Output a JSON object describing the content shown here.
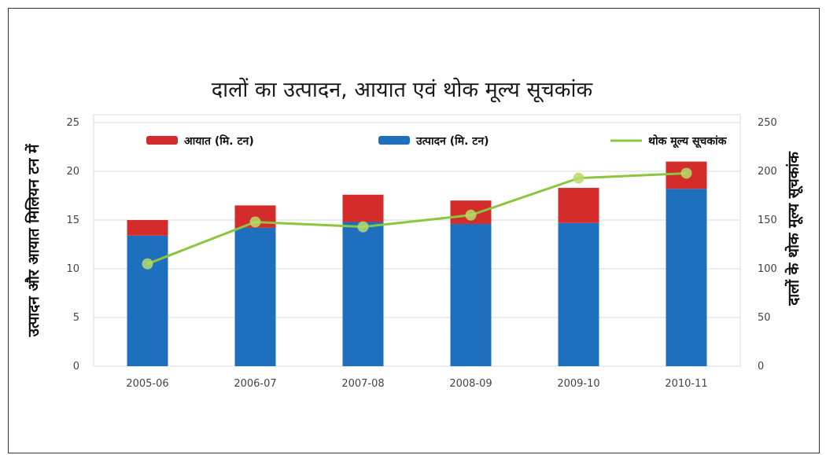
{
  "chart_data": {
    "type": "bar",
    "title": "दालों का उत्पादन, आयात एवं थोक मूल्य सूचकांक",
    "ylabel": "उत्पादन और आयात मिलियन टन में",
    "y2label": "दालों के थोक मूल्य सूचकांक",
    "categories": [
      "2005-06",
      "2006-07",
      "2007-08",
      "2008-09",
      "2009-10",
      "2010-11"
    ],
    "stacked": true,
    "ylim": [
      0,
      25
    ],
    "y2lim": [
      0,
      250
    ],
    "yticks": [
      0,
      5,
      10,
      15,
      20,
      25
    ],
    "y2ticks": [
      0,
      50,
      100,
      150,
      200,
      250
    ],
    "series": [
      {
        "name": "उत्पादन (मि. टन)",
        "type": "bar",
        "axis": "left",
        "color": "#1f6fbf",
        "values": [
          13.4,
          14.2,
          14.8,
          14.6,
          14.7,
          18.2
        ]
      },
      {
        "name": "आयात (मि. टन)",
        "type": "bar",
        "axis": "left",
        "color": "#d42b2b",
        "values": [
          1.6,
          2.3,
          2.8,
          2.4,
          3.6,
          2.8
        ]
      },
      {
        "name": "थोक मूल्य सूचकांक",
        "type": "line",
        "axis": "right",
        "color": "#8cc63f",
        "values": [
          105,
          148,
          143,
          155,
          193,
          198
        ]
      }
    ],
    "legend_position": "top",
    "grid": true
  }
}
